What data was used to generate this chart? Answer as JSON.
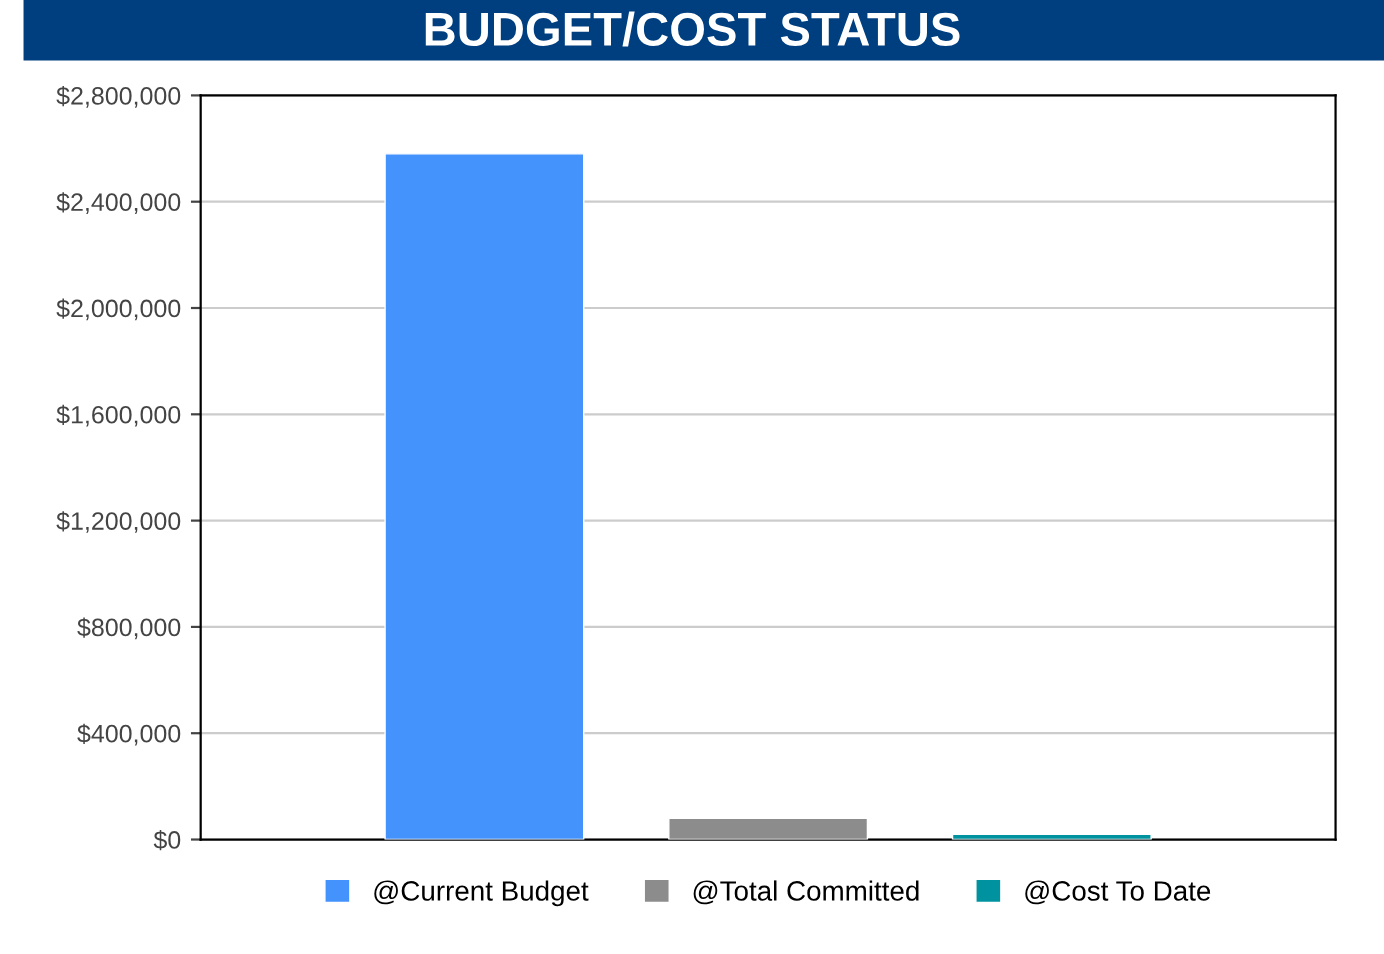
{
  "chart_data": {
    "type": "bar",
    "title": "BUDGET/COST STATUS",
    "categories": [
      null,
      null,
      null
    ],
    "series": [
      {
        "name": "@Current Budget",
        "color": "#4492fc",
        "values": [
          2580000,
          null,
          null
        ]
      },
      {
        "name": "@Total Committed",
        "color": "#8c8c8c",
        "values": [
          null,
          80000,
          null
        ]
      },
      {
        "name": "@Cost To Date",
        "color": "#00939f",
        "values": [
          null,
          null,
          20000
        ]
      }
    ],
    "ylim": [
      0,
      2800000
    ],
    "yticks": [
      {
        "value": 0,
        "label": "$0"
      },
      {
        "value": 400000,
        "label": "$400,000"
      },
      {
        "value": 800000,
        "label": "$800,000"
      },
      {
        "value": 1200000,
        "label": "$1,200,000"
      },
      {
        "value": 1600000,
        "label": "$1,600,000"
      },
      {
        "value": 2000000,
        "label": "$2,000,000"
      },
      {
        "value": 2400000,
        "label": "$2,400,000"
      },
      {
        "value": 2800000,
        "label": "$2,800,000"
      }
    ],
    "grid": "y",
    "legend": "bottom"
  }
}
